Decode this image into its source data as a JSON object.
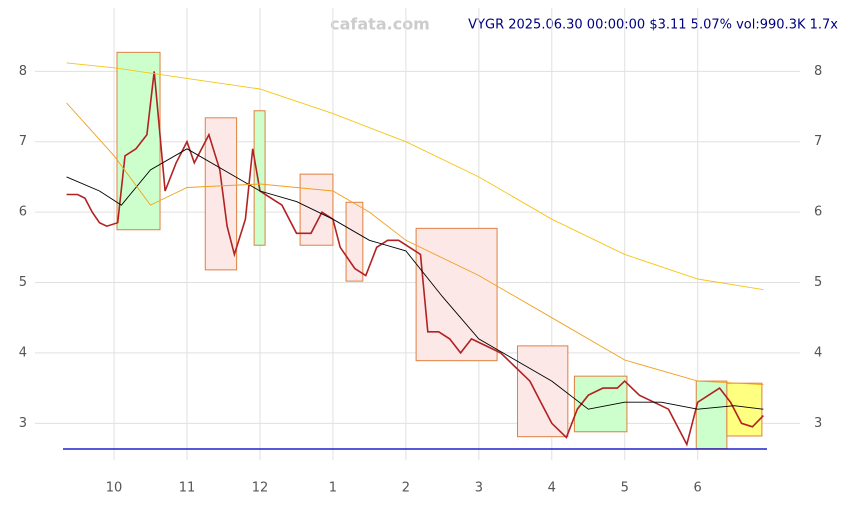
{
  "chart_data": {
    "type": "line",
    "watermark": "cafata.com",
    "title": "VYGR 2025.06.30 00:00:00 $3.11 5.07% vol:990.3K 1.7x",
    "xlim": [
      9.3,
      18.95
    ],
    "xticks": [
      {
        "value": 10,
        "label": "10"
      },
      {
        "value": 11,
        "label": "11"
      },
      {
        "value": 12,
        "label": "12"
      },
      {
        "value": 13,
        "label": "1"
      },
      {
        "value": 14,
        "label": "2"
      },
      {
        "value": 15,
        "label": "3"
      },
      {
        "value": 16,
        "label": "4"
      },
      {
        "value": 17,
        "label": "5"
      },
      {
        "value": 18,
        "label": "6"
      }
    ],
    "ylim": [
      2.55,
      8.9
    ],
    "yticks": [
      3,
      4,
      5,
      6,
      7,
      8
    ],
    "grid": true,
    "series": [
      {
        "name": "close",
        "color": "#b22222",
        "x": [
          9.35,
          9.5,
          9.6,
          9.7,
          9.8,
          9.9,
          10.05,
          10.15,
          10.3,
          10.45,
          10.55,
          10.7,
          10.85,
          11.0,
          11.1,
          11.3,
          11.45,
          11.55,
          11.65,
          11.8,
          11.9,
          12.0,
          12.15,
          12.3,
          12.5,
          12.7,
          12.85,
          13.0,
          13.1,
          13.3,
          13.45,
          13.6,
          13.75,
          13.9,
          14.05,
          14.2,
          14.3,
          14.45,
          14.6,
          14.75,
          14.9,
          15.1,
          15.3,
          15.5,
          15.7,
          15.85,
          16.0,
          16.2,
          16.35,
          16.5,
          16.7,
          16.9,
          17.0,
          17.2,
          17.4,
          17.6,
          17.75,
          17.85,
          18.0,
          18.15,
          18.3,
          18.45,
          18.6,
          18.75,
          18.9
        ],
        "values": [
          6.25,
          6.25,
          6.2,
          6.0,
          5.85,
          5.8,
          5.85,
          6.8,
          6.9,
          7.1,
          8.0,
          6.3,
          6.7,
          7.0,
          6.7,
          7.1,
          6.6,
          5.8,
          5.4,
          5.9,
          6.9,
          6.3,
          6.2,
          6.1,
          5.7,
          5.7,
          6.0,
          5.9,
          5.5,
          5.2,
          5.1,
          5.5,
          5.6,
          5.6,
          5.5,
          5.4,
          4.3,
          4.3,
          4.2,
          4.0,
          4.2,
          4.1,
          4.0,
          3.8,
          3.6,
          3.3,
          3.0,
          2.8,
          3.2,
          3.4,
          3.5,
          3.5,
          3.6,
          3.4,
          3.3,
          3.2,
          2.9,
          2.7,
          3.3,
          3.4,
          3.5,
          3.3,
          3.0,
          2.95,
          3.11
        ]
      },
      {
        "name": "ma-short",
        "color": "#000000",
        "x": [
          9.35,
          9.8,
          10.1,
          10.5,
          11.0,
          11.5,
          12.0,
          12.5,
          13.0,
          13.5,
          14.0,
          14.5,
          15.0,
          15.5,
          16.0,
          16.5,
          17.0,
          17.5,
          18.0,
          18.5,
          18.9
        ],
        "values": [
          6.5,
          6.3,
          6.1,
          6.6,
          6.9,
          6.6,
          6.3,
          6.15,
          5.9,
          5.6,
          5.45,
          4.8,
          4.2,
          3.9,
          3.6,
          3.2,
          3.3,
          3.3,
          3.2,
          3.25,
          3.2
        ]
      },
      {
        "name": "ma-mid",
        "color": "#f0a020",
        "x": [
          9.35,
          10.0,
          10.5,
          11.0,
          12.0,
          13.0,
          13.5,
          14.0,
          15.0,
          16.0,
          17.0,
          18.0,
          18.9
        ],
        "values": [
          7.55,
          6.8,
          6.1,
          6.35,
          6.4,
          6.3,
          6.0,
          5.6,
          5.1,
          4.5,
          3.9,
          3.6,
          3.55
        ]
      },
      {
        "name": "ma-long",
        "color": "#f5c518",
        "x": [
          9.35,
          10.0,
          11.0,
          12.0,
          13.0,
          14.0,
          15.0,
          16.0,
          17.0,
          18.0,
          18.9
        ],
        "values": [
          8.12,
          8.05,
          7.9,
          7.75,
          7.4,
          7.0,
          6.5,
          5.9,
          5.4,
          5.05,
          4.9
        ]
      }
    ],
    "boxes": [
      {
        "x": [
          10.04,
          10.63
        ],
        "y": [
          5.75,
          8.27
        ],
        "color": "#ccffcc"
      },
      {
        "x": [
          11.25,
          11.68
        ],
        "y": [
          5.18,
          7.34
        ],
        "color": "#fde8e8"
      },
      {
        "x": [
          11.92,
          12.07
        ],
        "y": [
          5.53,
          7.44
        ],
        "color": "#ccffcc"
      },
      {
        "x": [
          12.55,
          13.0
        ],
        "y": [
          5.53,
          6.54
        ],
        "color": "#fde8e8"
      },
      {
        "x": [
          13.18,
          13.41
        ],
        "y": [
          5.02,
          6.14
        ],
        "color": "#fde8e8"
      },
      {
        "x": [
          14.14,
          15.25
        ],
        "y": [
          3.89,
          5.77
        ],
        "color": "#fde8e8"
      },
      {
        "x": [
          15.53,
          16.22
        ],
        "y": [
          2.81,
          4.1
        ],
        "color": "#fde8e8"
      },
      {
        "x": [
          16.31,
          17.03
        ],
        "y": [
          2.88,
          3.67
        ],
        "color": "#ccffcc"
      },
      {
        "x": [
          17.98,
          18.4
        ],
        "y": [
          2.64,
          3.6
        ],
        "color": "#ccffcc"
      },
      {
        "x": [
          18.4,
          18.88
        ],
        "y": [
          2.82,
          3.57
        ],
        "color": "#ffff80"
      }
    ]
  }
}
